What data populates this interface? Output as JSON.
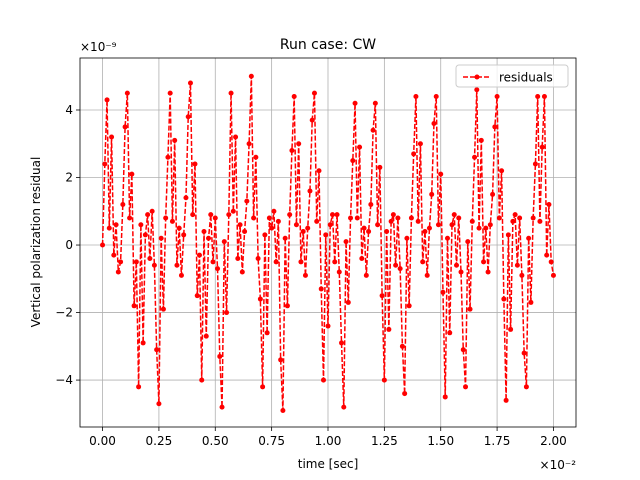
{
  "chart_data": {
    "type": "line",
    "title": "Run case: CW",
    "x_label": "time [sec]",
    "y_label": "Vertical polarization residual",
    "x_offset_label": "×10⁻²",
    "y_offset_label": "×10⁻⁹",
    "x": [
      0,
      0.01,
      0.02,
      0.03,
      0.04,
      0.05,
      0.06,
      0.07,
      0.08,
      0.09,
      0.1,
      0.11,
      0.12,
      0.13,
      0.14,
      0.15,
      0.16,
      0.17,
      0.18,
      0.19,
      0.2,
      0.21,
      0.22,
      0.23,
      0.24,
      0.25,
      0.26,
      0.27,
      0.28,
      0.29,
      0.3,
      0.31,
      0.32,
      0.33,
      0.34,
      0.35,
      0.36,
      0.37,
      0.38,
      0.39,
      0.4,
      0.41,
      0.42,
      0.43,
      0.44,
      0.45,
      0.46,
      0.47,
      0.48,
      0.49,
      0.5,
      0.51,
      0.52,
      0.53,
      0.54,
      0.55,
      0.56,
      0.57,
      0.58,
      0.59,
      0.6,
      0.61,
      0.62,
      0.63,
      0.64,
      0.65,
      0.66,
      0.67,
      0.68,
      0.69,
      0.7,
      0.71,
      0.72,
      0.73,
      0.74,
      0.75,
      0.76,
      0.77,
      0.78,
      0.79,
      0.8,
      0.81,
      0.82,
      0.83,
      0.84,
      0.85,
      0.86,
      0.87,
      0.88,
      0.89,
      0.9,
      0.91,
      0.92,
      0.93,
      0.94,
      0.95,
      0.96,
      0.97,
      0.98,
      0.99,
      1,
      1.01,
      1.02,
      1.03,
      1.04,
      1.05,
      1.06,
      1.07,
      1.08,
      1.09,
      1.1,
      1.11,
      1.12,
      1.13,
      1.14,
      1.15,
      1.16,
      1.17,
      1.18,
      1.19,
      1.2,
      1.21,
      1.22,
      1.23,
      1.24,
      1.25,
      1.26,
      1.27,
      1.28,
      1.29,
      1.3,
      1.31,
      1.32,
      1.33,
      1.34,
      1.35,
      1.36,
      1.37,
      1.38,
      1.39,
      1.4,
      1.41,
      1.42,
      1.43,
      1.44,
      1.45,
      1.46,
      1.47,
      1.48,
      1.49,
      1.5,
      1.51,
      1.52,
      1.53,
      1.54,
      1.55,
      1.56,
      1.57,
      1.58,
      1.59,
      1.6,
      1.61,
      1.62,
      1.63,
      1.64,
      1.65,
      1.66,
      1.67,
      1.68,
      1.69,
      1.7,
      1.71,
      1.72,
      1.73,
      1.74,
      1.75,
      1.76,
      1.77,
      1.78,
      1.79,
      1.8,
      1.81,
      1.82,
      1.83,
      1.84,
      1.85,
      1.86,
      1.87,
      1.88,
      1.89,
      1.9,
      1.91,
      1.92,
      1.93,
      1.94,
      1.95,
      1.96,
      1.97,
      1.98,
      1.99,
      2
    ],
    "series": [
      {
        "name": "residuals",
        "color": "#ff0000",
        "linestyle": "dashed",
        "marker": "o",
        "values": [
          0,
          2.4,
          4.3,
          0.5,
          3.2,
          -0.3,
          0.6,
          -0.8,
          -0.5,
          1.2,
          3.5,
          4.5,
          0.8,
          2.1,
          -1.8,
          -0.5,
          -4.2,
          0.6,
          -2.9,
          0.3,
          0.9,
          -0.4,
          1.0,
          -0.6,
          -3.1,
          -4.7,
          0.2,
          -1.9,
          0.8,
          2.6,
          4.5,
          0.7,
          3.1,
          -0.6,
          0.5,
          -0.9,
          0.3,
          1.4,
          3.8,
          4.8,
          0.9,
          2.4,
          -1.5,
          -0.3,
          -4.0,
          0.4,
          -2.7,
          0.2,
          0.9,
          -0.5,
          0.8,
          -0.7,
          -3.3,
          -4.8,
          0.1,
          -2.0,
          0.9,
          4.5,
          1.0,
          3.2,
          -0.4,
          0.6,
          -0.8,
          0.4,
          1.3,
          3.0,
          5.0,
          0.8,
          2.6,
          -0.4,
          -1.6,
          -4.2,
          0.3,
          -2.6,
          0.8,
          0.5,
          1.0,
          -0.5,
          0.7,
          -3.4,
          -4.9,
          0.2,
          -1.8,
          0.9,
          2.8,
          4.4,
          0.6,
          3.0,
          -0.5,
          0.4,
          -0.9,
          0.5,
          1.6,
          3.7,
          4.5,
          0.7,
          2.2,
          -1.3,
          -4.0,
          0.3,
          -2.4,
          0.6,
          0.9,
          -0.5,
          0.9,
          -0.8,
          -2.9,
          -4.8,
          0.1,
          -1.7,
          0.8,
          2.5,
          4.2,
          0.8,
          2.9,
          -0.4,
          0.5,
          -0.9,
          0.4,
          1.2,
          3.4,
          4.2,
          0.6,
          2.3,
          -1.5,
          -4.0,
          0.4,
          -2.5,
          0.7,
          0.9,
          -0.6,
          0.8,
          -0.7,
          -3.0,
          -4.4,
          0.2,
          -1.8,
          0.8,
          2.7,
          4.4,
          0.7,
          3.0,
          -0.5,
          0.4,
          -0.9,
          0.5,
          1.5,
          3.6,
          4.4,
          0.6,
          2.1,
          -1.4,
          -4.5,
          0.2,
          -2.6,
          0.6,
          0.9,
          -0.6,
          0.8,
          -0.8,
          -3.1,
          -4.2,
          0.1,
          -1.9,
          0.7,
          2.6,
          4.6,
          0.5,
          3.1,
          -0.5,
          0.5,
          -0.8,
          0.6,
          1.5,
          3.5,
          4.4,
          0.8,
          2.2,
          -1.6,
          -4.6,
          0.3,
          -2.5,
          0.7,
          0.9,
          -0.6,
          0.8,
          -0.9,
          -3.2,
          -4.2,
          0.2,
          -1.7,
          0.8,
          2.4,
          4.4,
          0.7,
          2.9,
          4.4,
          -0.3,
          1.2,
          -0.5,
          -0.9
        ]
      }
    ],
    "xlim": [
      -0.1,
      2.1
    ],
    "xticks": [
      {
        "value": 0,
        "label": "0.00"
      },
      {
        "value": 0.25,
        "label": "0.25"
      },
      {
        "value": 0.5,
        "label": "0.50"
      },
      {
        "value": 0.75,
        "label": "0.75"
      },
      {
        "value": 1,
        "label": "1.00"
      },
      {
        "value": 1.25,
        "label": "1.25"
      },
      {
        "value": 1.5,
        "label": "1.50"
      },
      {
        "value": 1.75,
        "label": "1.75"
      },
      {
        "value": 2,
        "label": "2.00"
      }
    ],
    "ylim": [
      -5.39,
      5.54
    ],
    "yticks": [
      {
        "value": -4,
        "label": "−4"
      },
      {
        "value": -2,
        "label": "−2"
      },
      0,
      2,
      4
    ],
    "grid": true,
    "legend": "upper right"
  }
}
